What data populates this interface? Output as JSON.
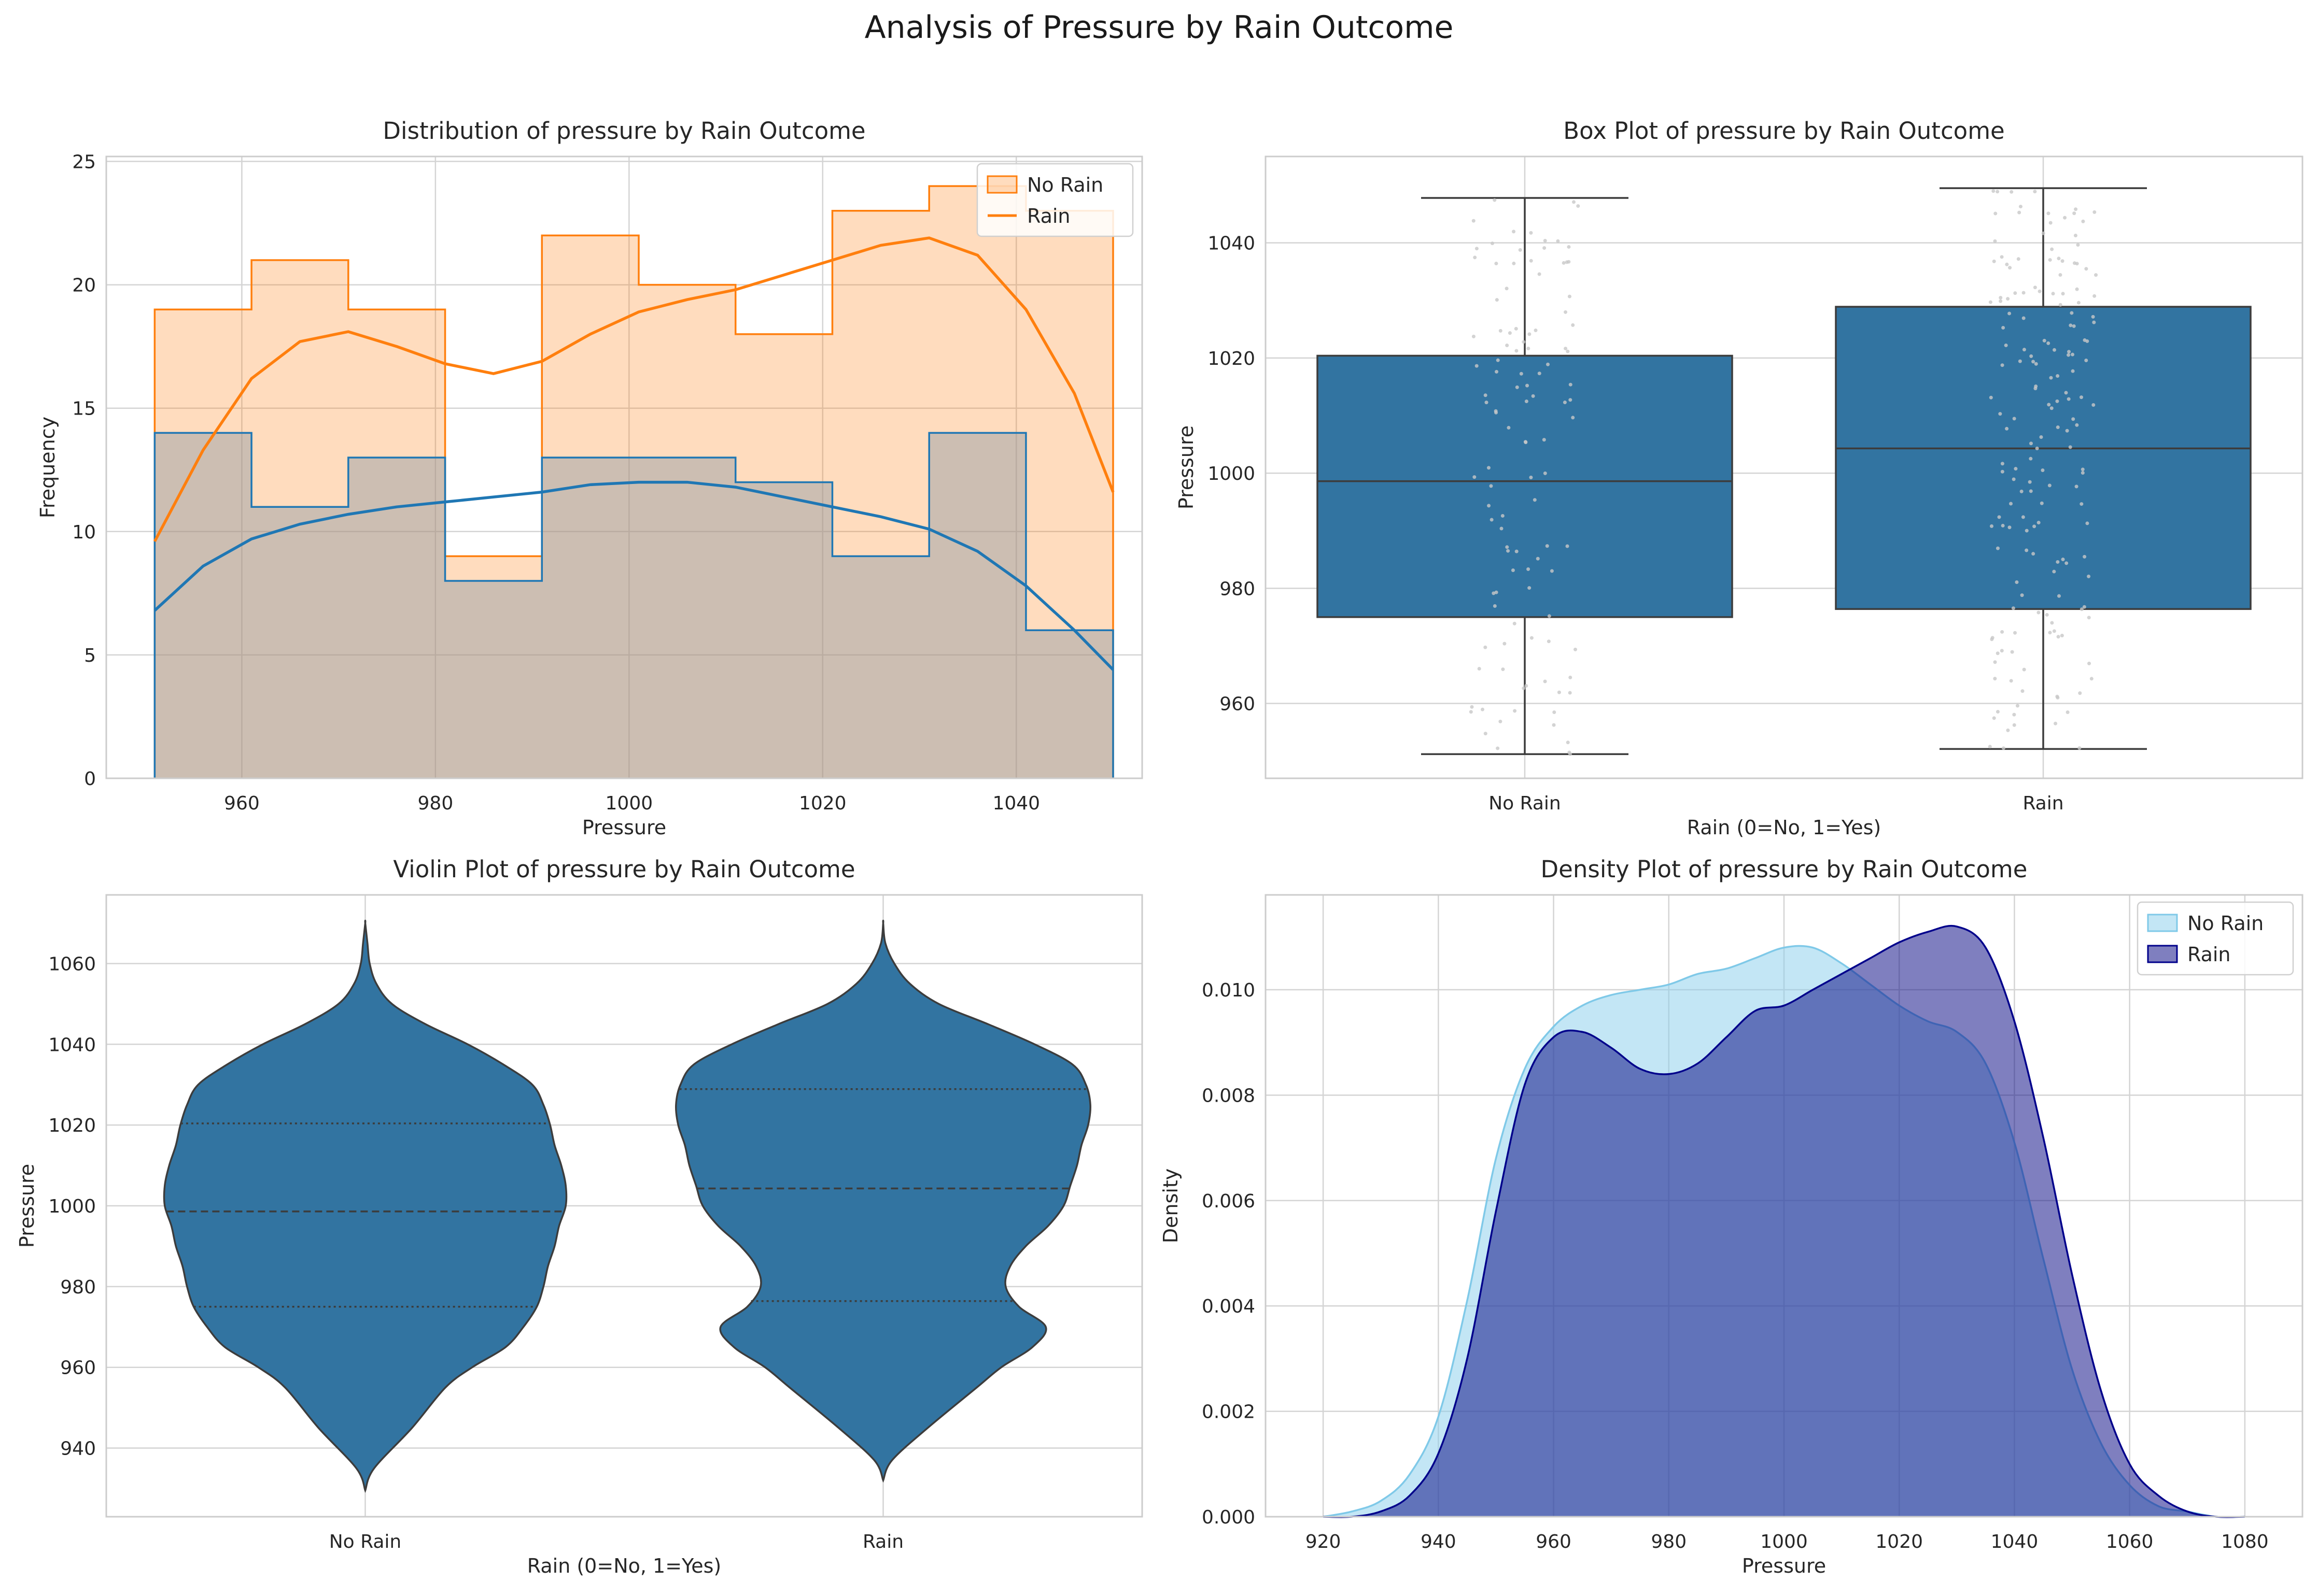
{
  "suptitle": "Analysis of Pressure by Rain Outcome",
  "colors": {
    "hist_no_rain": "#ff7f0e",
    "hist_rain": "#1f77b4",
    "box_fill": "#3274a1",
    "violin_fill": "#3274a1",
    "edge": "#3c3c3c",
    "kde_no_rain_fill": "#87ceeb",
    "kde_no_rain_edge": "#7fc9e8",
    "kde_rain_fill": "#000080",
    "kde_rain_edge": "#00008b",
    "grid": "#d4d4d4",
    "spine": "#cccccc"
  },
  "chart_data": [
    {
      "type": "histogram",
      "title": "Distribution of pressure by Rain Outcome",
      "xlabel": "Pressure",
      "ylabel": "Frequency",
      "xlim": [
        946,
        1053
      ],
      "ylim": [
        0,
        25.2
      ],
      "xticks": [
        960,
        980,
        1000,
        1020,
        1040
      ],
      "yticks": [
        0,
        5,
        10,
        15,
        20,
        25
      ],
      "bin_edges": [
        951,
        961,
        971,
        981,
        991,
        1001,
        1011,
        1021,
        1031,
        1041,
        1050
      ],
      "series": [
        {
          "name": "No Rain",
          "values": [
            19,
            21,
            19,
            9,
            22,
            20,
            18,
            23,
            24,
            23
          ],
          "kde_x": [
            951,
            956,
            961,
            966,
            971,
            976,
            981,
            986,
            991,
            996,
            1001,
            1006,
            1011,
            1016,
            1021,
            1026,
            1031,
            1036,
            1041,
            1046,
            1050
          ],
          "kde_y": [
            9.6,
            13.3,
            16.2,
            17.7,
            18.1,
            17.5,
            16.8,
            16.4,
            16.9,
            18.0,
            18.9,
            19.4,
            19.8,
            20.4,
            21.0,
            21.6,
            21.9,
            21.2,
            19.0,
            15.6,
            11.6
          ]
        },
        {
          "name": "Rain",
          "values": [
            14,
            11,
            13,
            8,
            13,
            13,
            12,
            9,
            14,
            6
          ],
          "kde_x": [
            951,
            956,
            961,
            966,
            971,
            976,
            981,
            986,
            991,
            996,
            1001,
            1006,
            1011,
            1016,
            1021,
            1026,
            1031,
            1036,
            1041,
            1046,
            1050
          ],
          "kde_y": [
            6.8,
            8.6,
            9.7,
            10.3,
            10.7,
            11.0,
            11.2,
            11.4,
            11.6,
            11.9,
            12.0,
            12.0,
            11.8,
            11.4,
            11.0,
            10.6,
            10.1,
            9.2,
            7.8,
            6.0,
            4.4
          ]
        }
      ],
      "legend": {
        "position": "upper right",
        "entries": [
          "No Rain",
          "Rain"
        ]
      }
    },
    {
      "type": "box",
      "title": "Box Plot of pressure by Rain Outcome",
      "xlabel": "Rain (0=No, 1=Yes)",
      "ylabel": "Pressure",
      "categories": [
        "No Rain",
        "Rain"
      ],
      "ylim": [
        947,
        1055
      ],
      "yticks": [
        960,
        980,
        1000,
        1020,
        1040
      ],
      "boxes": [
        {
          "category": "No Rain",
          "whisker_low": 951.2,
          "q1": 975.0,
          "median": 998.6,
          "q3": 1020.4,
          "whisker_high": 1047.8
        },
        {
          "category": "Rain",
          "whisker_low": 952.1,
          "q1": 976.4,
          "median": 1004.3,
          "q3": 1028.9,
          "whisker_high": 1049.5
        }
      ],
      "points": "jittered strip overlay of individual observations"
    },
    {
      "type": "violin",
      "title": "Violin Plot of pressure by Rain Outcome",
      "xlabel": "Rain (0=No, 1=Yes)",
      "ylabel": "Pressure",
      "categories": [
        "No Rain",
        "Rain"
      ],
      "ylim": [
        923,
        1077
      ],
      "yticks": [
        940,
        960,
        980,
        1000,
        1020,
        1040,
        1060
      ],
      "violins": [
        {
          "category": "No Rain",
          "y": [
            929.5,
            935,
            945,
            955,
            960,
            965,
            970,
            975,
            980,
            985,
            990,
            995,
            1000,
            1005,
            1010,
            1015,
            1020,
            1025,
            1030,
            1035,
            1040,
            1045,
            1050,
            1055,
            1060,
            1065,
            1070
          ],
          "half_width": [
            0.0,
            0.04,
            0.21,
            0.36,
            0.48,
            0.63,
            0.71,
            0.77,
            0.8,
            0.82,
            0.85,
            0.87,
            0.9,
            0.9,
            0.88,
            0.85,
            0.83,
            0.8,
            0.75,
            0.62,
            0.46,
            0.27,
            0.12,
            0.05,
            0.02,
            0.01,
            0.0
          ],
          "q1": 975.0,
          "median": 998.6,
          "q3": 1020.4
        },
        {
          "category": "Rain",
          "y": [
            932,
            937,
            945,
            955,
            960,
            965,
            970,
            975,
            980,
            985,
            990,
            995,
            1000,
            1005,
            1010,
            1015,
            1020,
            1025,
            1030,
            1035,
            1040,
            1045,
            1050,
            1055,
            1060,
            1065,
            1070
          ],
          "half_width": [
            0.0,
            0.04,
            0.2,
            0.42,
            0.53,
            0.67,
            0.73,
            0.61,
            0.55,
            0.57,
            0.64,
            0.74,
            0.81,
            0.84,
            0.87,
            0.89,
            0.92,
            0.93,
            0.91,
            0.85,
            0.68,
            0.47,
            0.25,
            0.12,
            0.05,
            0.01,
            0.0
          ],
          "q1": 976.4,
          "median": 1004.3,
          "q3": 1028.9
        }
      ]
    },
    {
      "type": "area",
      "title": "Density Plot of pressure by Rain Outcome",
      "xlabel": "Pressure",
      "ylabel": "Density",
      "xlim": [
        910,
        1090
      ],
      "ylim": [
        0,
        0.0118
      ],
      "xticks": [
        920,
        940,
        960,
        980,
        1000,
        1020,
        1040,
        1060,
        1080
      ],
      "yticks": [
        0.0,
        0.002,
        0.004,
        0.006,
        0.008,
        0.01
      ],
      "ytick_labels": [
        "0.000",
        "0.002",
        "0.004",
        "0.006",
        "0.008",
        "0.010"
      ],
      "x": [
        920,
        925,
        930,
        935,
        940,
        945,
        950,
        955,
        960,
        965,
        970,
        975,
        980,
        985,
        990,
        995,
        1000,
        1005,
        1010,
        1015,
        1020,
        1025,
        1030,
        1035,
        1040,
        1045,
        1050,
        1055,
        1060,
        1065,
        1070,
        1075,
        1080
      ],
      "series": [
        {
          "name": "No Rain",
          "values": [
            0.0,
            0.0001,
            0.0003,
            0.0008,
            0.0019,
            0.0041,
            0.0068,
            0.0085,
            0.0093,
            0.0097,
            0.0099,
            0.01,
            0.0101,
            0.0103,
            0.0104,
            0.0106,
            0.0108,
            0.0108,
            0.0105,
            0.0101,
            0.0097,
            0.0094,
            0.0092,
            0.0086,
            0.0071,
            0.0049,
            0.0028,
            0.0014,
            0.0006,
            0.0002,
            0.0001,
            0.0,
            0.0
          ]
        },
        {
          "name": "Rain",
          "values": [
            0.0,
            0.0,
            0.0001,
            0.0004,
            0.0012,
            0.003,
            0.0058,
            0.0082,
            0.0091,
            0.0092,
            0.0089,
            0.0085,
            0.0084,
            0.0086,
            0.0091,
            0.0096,
            0.0097,
            0.01,
            0.0103,
            0.0106,
            0.0109,
            0.0111,
            0.0112,
            0.0108,
            0.0094,
            0.0072,
            0.0046,
            0.0024,
            0.001,
            0.0004,
            0.0001,
            0.0,
            0.0
          ]
        }
      ],
      "legend": {
        "position": "upper right",
        "entries": [
          "No Rain",
          "Rain"
        ]
      }
    }
  ]
}
